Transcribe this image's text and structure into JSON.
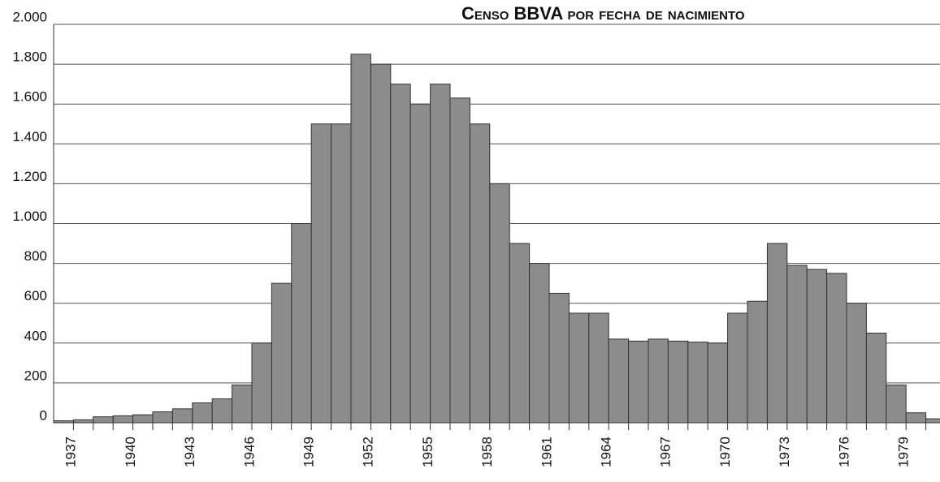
{
  "chart_data": {
    "type": "bar",
    "title": "Censo BBVA por fecha de nacimiento",
    "categories": [
      "1937",
      null,
      null,
      "1940",
      null,
      null,
      "1943",
      null,
      null,
      "1946",
      null,
      null,
      "1949",
      null,
      null,
      "1952",
      null,
      null,
      "1955",
      null,
      null,
      "1958",
      null,
      null,
      "1961",
      null,
      null,
      "1964",
      null,
      null,
      "1967",
      null,
      null,
      "1970",
      null,
      null,
      "1973",
      null,
      null,
      "1976",
      null,
      null,
      "1979",
      null,
      null
    ],
    "values": [
      10,
      15,
      30,
      35,
      40,
      55,
      70,
      100,
      120,
      190,
      400,
      700,
      1000,
      1500,
      1500,
      1850,
      1800,
      1700,
      1600,
      1700,
      1630,
      1500,
      1200,
      900,
      800,
      650,
      550,
      550,
      420,
      410,
      420,
      410,
      405,
      400,
      550,
      610,
      900,
      790,
      770,
      750,
      600,
      450,
      190,
      50,
      20
    ],
    "color": "#8c8c8c",
    "ylim": [
      0,
      2000
    ],
    "yticks": [
      {
        "value": 0,
        "label": "0"
      },
      {
        "value": 200,
        "label": "200"
      },
      {
        "value": 400,
        "label": "400"
      },
      {
        "value": 600,
        "label": "600"
      },
      {
        "value": 800,
        "label": "800"
      },
      {
        "value": 1000,
        "label": "1.000"
      },
      {
        "value": 1200,
        "label": "1.200"
      },
      {
        "value": 1400,
        "label": "1.400"
      },
      {
        "value": 1600,
        "label": "1.600"
      },
      {
        "value": 1800,
        "label": "1.800"
      },
      {
        "value": 2000,
        "label": "2.000"
      }
    ],
    "grid": true
  }
}
